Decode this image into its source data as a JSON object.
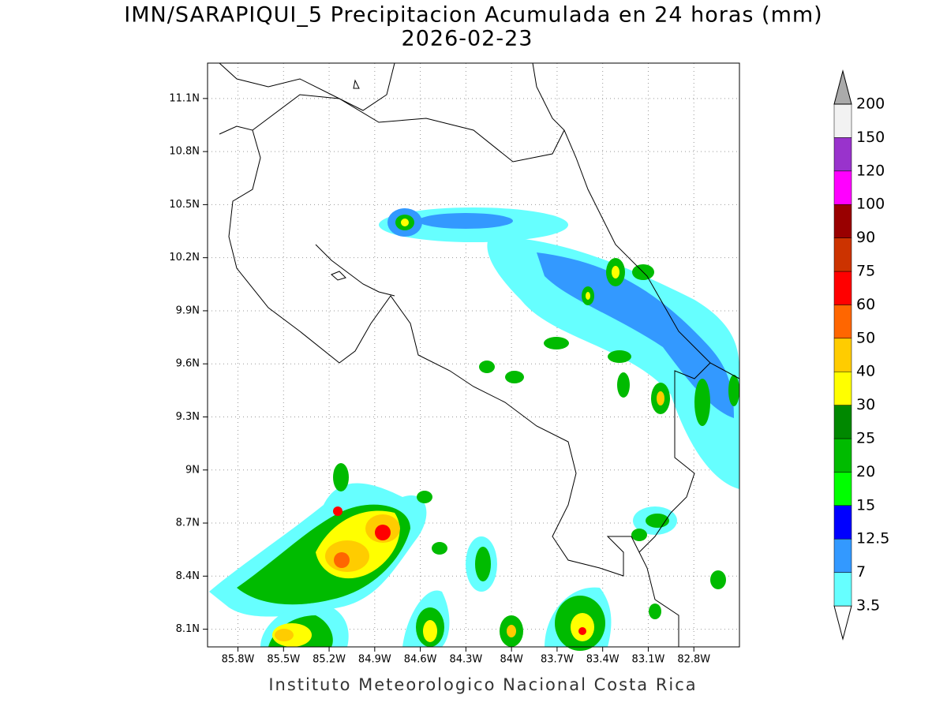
{
  "chart_data": {
    "type": "filled-contour-map",
    "title": "IMN/SARAPIQUI_5 Precipitacion Acumulada en 24 horas (mm)",
    "subtitle": "2026-02-23",
    "caption": "Instituto Meteorologico Nacional Costa Rica",
    "xlim": [
      -86.0,
      -82.5
    ],
    "ylim": [
      8.0,
      11.3
    ],
    "xticks": [
      {
        "value": -85.8,
        "label": "85.8W"
      },
      {
        "value": -85.5,
        "label": "85.5W"
      },
      {
        "value": -85.2,
        "label": "85.2W"
      },
      {
        "value": -84.9,
        "label": "84.9W"
      },
      {
        "value": -84.6,
        "label": "84.6W"
      },
      {
        "value": -84.3,
        "label": "84.3W"
      },
      {
        "value": -84.0,
        "label": "84W"
      },
      {
        "value": -83.7,
        "label": "83.7W"
      },
      {
        "value": -83.4,
        "label": "83.4W"
      },
      {
        "value": -83.1,
        "label": "83.1W"
      },
      {
        "value": -82.8,
        "label": "82.8W"
      }
    ],
    "yticks": [
      {
        "value": 8.1,
        "label": "8.1N"
      },
      {
        "value": 8.4,
        "label": "8.4N"
      },
      {
        "value": 8.7,
        "label": "8.7N"
      },
      {
        "value": 9.0,
        "label": "9N"
      },
      {
        "value": 9.3,
        "label": "9.3N"
      },
      {
        "value": 9.6,
        "label": "9.6N"
      },
      {
        "value": 9.9,
        "label": "9.9N"
      },
      {
        "value": 10.2,
        "label": "10.2N"
      },
      {
        "value": 10.5,
        "label": "10.5N"
      },
      {
        "value": 10.8,
        "label": "10.8N"
      },
      {
        "value": 11.1,
        "label": "11.1N"
      }
    ],
    "grid": true,
    "levels": [
      3.5,
      7,
      12.5,
      15,
      20,
      25,
      30,
      40,
      50,
      60,
      75,
      90,
      100,
      120,
      150,
      200
    ],
    "colors": [
      "#ffffff",
      "#66ffff",
      "#3399ff",
      "#0000ff",
      "#00ff00",
      "#00bb00",
      "#008800",
      "#ffff00",
      "#ffcc00",
      "#ff6600",
      "#ff0000",
      "#cc3300",
      "#990000",
      "#ff00ff",
      "#9933cc",
      "#f2f2f2",
      "#aaaaaa"
    ]
  }
}
